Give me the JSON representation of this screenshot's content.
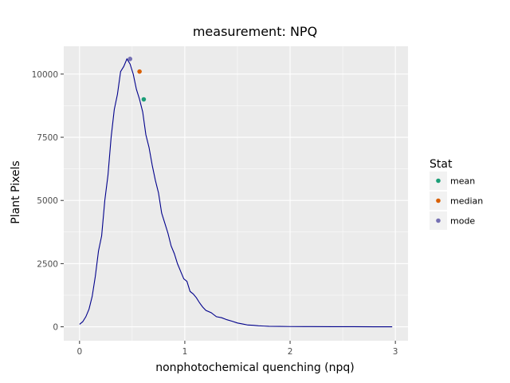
{
  "chart_data": {
    "type": "line",
    "title": "measurement: NPQ",
    "xlabel": "nonphotochemical quenching (npq)",
    "ylabel": "Plant Pixels",
    "xlim": [
      -0.15,
      3.12
    ],
    "ylim": [
      -550,
      11100
    ],
    "x_ticks": [
      0,
      1,
      2,
      3
    ],
    "x_tick_labels": [
      "0",
      "1",
      "2",
      "3"
    ],
    "y_ticks": [
      0,
      2500,
      5000,
      7500,
      10000
    ],
    "y_tick_labels": [
      "0",
      "2500",
      "5000",
      "7500",
      "10000"
    ],
    "grid": true,
    "line_color": "#00008b",
    "series": [
      {
        "x": [
          0.0,
          0.03,
          0.06,
          0.09,
          0.12,
          0.15,
          0.18,
          0.21,
          0.24,
          0.27,
          0.3,
          0.33,
          0.36,
          0.39,
          0.42,
          0.45,
          0.48,
          0.51,
          0.54,
          0.57,
          0.6,
          0.63,
          0.66,
          0.69,
          0.72,
          0.75,
          0.78,
          0.81,
          0.84,
          0.87,
          0.9,
          0.93,
          0.96,
          0.99,
          1.02,
          1.05,
          1.08,
          1.11,
          1.14,
          1.17,
          1.2,
          1.25,
          1.3,
          1.35,
          1.4,
          1.45,
          1.5,
          1.55,
          1.6,
          1.65,
          1.7,
          1.75,
          1.8,
          1.9,
          2.0,
          2.2,
          2.4,
          2.6,
          2.8,
          2.97
        ],
        "y": [
          100,
          200,
          400,
          700,
          1200,
          2000,
          3000,
          3600,
          5000,
          6000,
          7500,
          8600,
          9200,
          10100,
          10300,
          10600,
          10400,
          10000,
          9400,
          9000,
          8500,
          7600,
          7100,
          6400,
          5800,
          5300,
          4500,
          4100,
          3700,
          3200,
          2900,
          2500,
          2200,
          1900,
          1800,
          1400,
          1300,
          1150,
          950,
          780,
          650,
          560,
          400,
          360,
          280,
          220,
          150,
          110,
          70,
          60,
          40,
          30,
          20,
          15,
          10,
          8,
          5,
          3,
          1,
          0
        ]
      }
    ],
    "points": [
      {
        "name": "mean",
        "x": 0.61,
        "y": 9000,
        "color": "#1b9e77"
      },
      {
        "name": "median",
        "x": 0.57,
        "y": 10100,
        "color": "#d95f02"
      },
      {
        "name": "mode",
        "x": 0.48,
        "y": 10600,
        "color": "#7570b3"
      }
    ],
    "legend": {
      "title": "Stat",
      "position": "right",
      "entries": [
        {
          "label": "mean",
          "color": "#1b9e77"
        },
        {
          "label": "median",
          "color": "#d95f02"
        },
        {
          "label": "mode",
          "color": "#7570b3"
        }
      ]
    }
  }
}
